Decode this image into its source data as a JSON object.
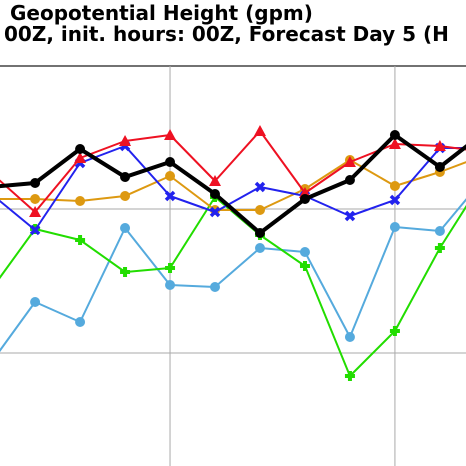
{
  "chart_data": {
    "type": "line",
    "title_lines": [
      "Geopotential Height (gpm)",
      "00Z, init. hours: 00Z, Forecast Day 5 (H"
    ],
    "x": [
      0,
      1,
      2,
      3,
      4,
      5,
      6,
      7,
      8,
      9,
      10,
      11
    ],
    "xlim": [
      0.22,
      10.58
    ],
    "xticks": [
      4,
      9
    ],
    "ylim": [
      -113,
      287
    ],
    "yticks": [
      0,
      144
    ],
    "grid": true,
    "series": [
      {
        "color": "#55aadd",
        "marker": "circle",
        "width": 2,
        "values": [
          -11,
          51,
          31,
          125,
          68,
          66,
          105,
          101,
          16,
          126,
          122,
          176
        ]
      },
      {
        "color": "#22dd00",
        "marker": "plus",
        "width": 2,
        "values": [
          62,
          124,
          113,
          81,
          85,
          156,
          118,
          87,
          -23,
          22,
          105,
          176
        ]
      },
      {
        "color": "#dd9911",
        "marker": "circle",
        "width": 2,
        "values": [
          154,
          154,
          152,
          157,
          177,
          143,
          143,
          164,
          193,
          167,
          181,
          198
        ]
      },
      {
        "color": "#2222ee",
        "marker": "x",
        "width": 2,
        "values": [
          160,
          123,
          190,
          207,
          157,
          141,
          166,
          157,
          137,
          153,
          205,
          205
        ]
      },
      {
        "color": "#ee1122",
        "marker": "triangle",
        "width": 2,
        "values": [
          181,
          141,
          195,
          212,
          218,
          172,
          222,
          160,
          191,
          209,
          207,
          201
        ]
      },
      {
        "color": "#000000",
        "marker": "circle",
        "width": 4,
        "values": [
          166,
          170,
          204,
          176,
          191,
          159,
          120,
          154,
          173,
          218,
          186,
          221
        ]
      }
    ]
  }
}
